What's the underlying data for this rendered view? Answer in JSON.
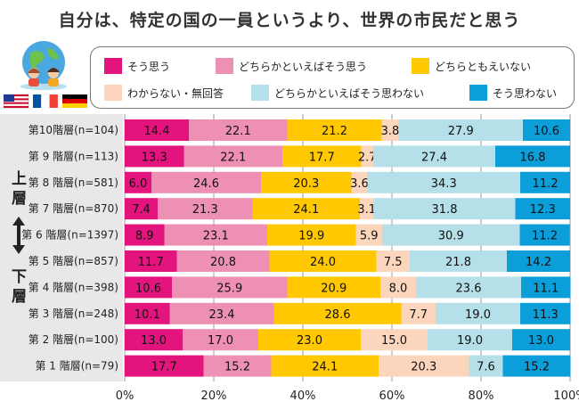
{
  "title": "自分は、特定の国の一員というより、世界の市民だと思う",
  "side_labels": {
    "top": [
      "上",
      "層"
    ],
    "bottom": [
      "下",
      "層"
    ]
  },
  "legend": [
    {
      "label": "そう思う",
      "color": "#e3147d"
    },
    {
      "label": "どちらかといえばそう思う",
      "color": "#ee8fb4"
    },
    {
      "label": "どちらともえいない",
      "color": "#ffc800"
    },
    {
      "label": "わからない・無回答",
      "color": "#fcd6bc"
    },
    {
      "label": "どちらかといえばそう思わない",
      "color": "#b5dfe9"
    },
    {
      "label": "そう思わない",
      "color": "#0b9ed9"
    }
  ],
  "chart_data": {
    "type": "bar",
    "orientation": "horizontal",
    "stacked": true,
    "title": "自分は、特定の国の一員というより、世界の市民だと思う",
    "categories": [
      "第10階層(n=104)",
      "第 9 階層(n=113)",
      "第 8 階層(n=581)",
      "第 7 階層(n=870)",
      "第 6 階層(n=1397)",
      "第 5 階層(n=857)",
      "第 4 階層(n=398)",
      "第 3 階層(n=248)",
      "第 2 階層(n=100)",
      "第 1 階層(n=79)"
    ],
    "series": [
      {
        "name": "そう思う",
        "color": "#e3147d",
        "values": [
          14.4,
          13.3,
          6.0,
          7.4,
          8.9,
          11.7,
          10.6,
          10.1,
          13.0,
          17.7
        ]
      },
      {
        "name": "どちらかといえばそう思う",
        "color": "#ee8fb4",
        "values": [
          22.1,
          22.1,
          24.6,
          21.3,
          23.1,
          20.8,
          25.9,
          23.4,
          17.0,
          15.2
        ]
      },
      {
        "name": "どちらともえいない",
        "color": "#ffc800",
        "values": [
          21.2,
          17.7,
          20.3,
          24.1,
          19.9,
          24.0,
          20.9,
          28.6,
          23.0,
          24.1
        ]
      },
      {
        "name": "わからない・無回答",
        "color": "#fcd6bc",
        "values": [
          3.8,
          2.7,
          3.6,
          3.1,
          5.9,
          7.5,
          8.0,
          7.7,
          15.0,
          20.3
        ]
      },
      {
        "name": "どちらかといえばそう思わない",
        "color": "#b5dfe9",
        "values": [
          27.9,
          27.4,
          34.3,
          31.8,
          30.9,
          21.8,
          23.6,
          19.0,
          19.0,
          7.6
        ]
      },
      {
        "name": "そう思わない",
        "color": "#0b9ed9",
        "values": [
          10.6,
          16.8,
          11.2,
          12.3,
          11.2,
          14.2,
          11.1,
          11.3,
          13.0,
          15.2
        ]
      }
    ],
    "xlim": [
      0,
      100
    ],
    "xticks": [
      "0%",
      "20%",
      "40%",
      "60%",
      "80%",
      "100%"
    ],
    "grid": true,
    "legend_position": "top"
  }
}
